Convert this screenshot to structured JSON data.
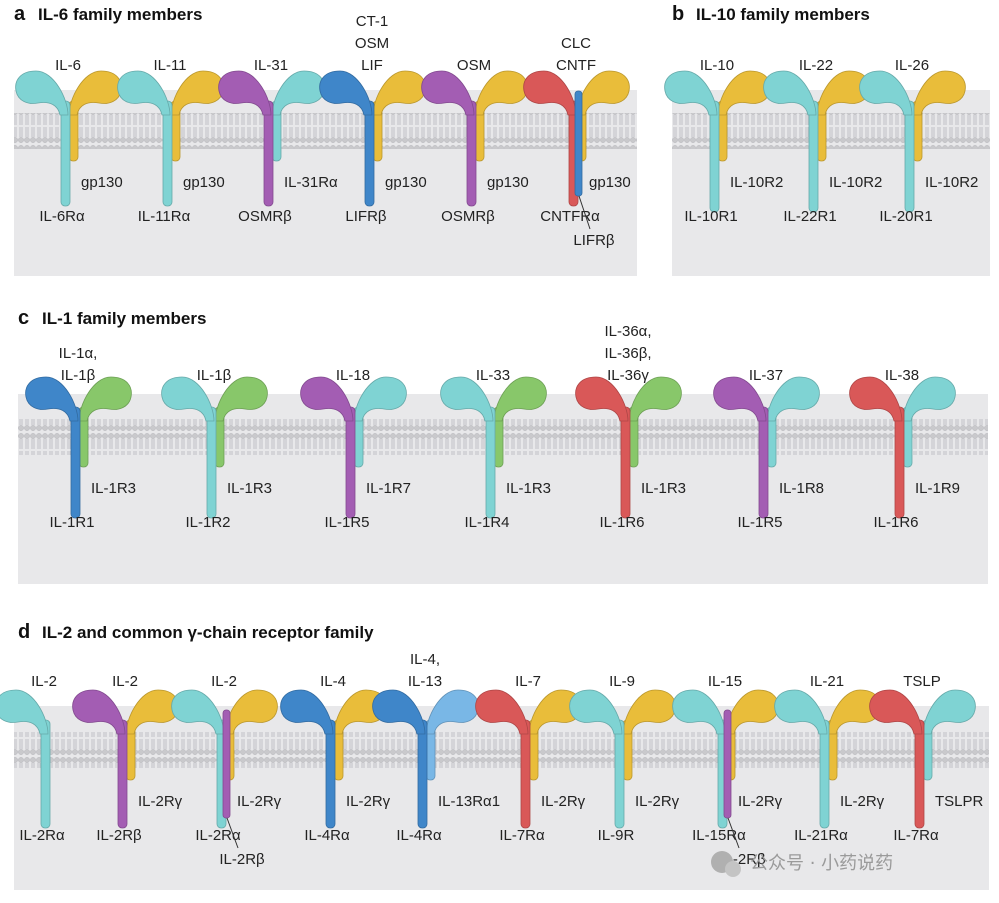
{
  "colors": {
    "cyan": "#7fd3d3",
    "cyan_dark": "#4fb3b5",
    "yellow": "#e9bd3a",
    "purple": "#a35db3",
    "blue": "#3f86c9",
    "lightblue": "#79b7e6",
    "red": "#d95858",
    "green": "#88c76a",
    "panel": "#e8e8ea"
  },
  "sections": [
    {
      "id": "a",
      "letter": "a",
      "title": "IL-6 family members",
      "receptors": [
        {
          "ligand": [
            "IL-6"
          ],
          "left": "cyan",
          "right": "yellow",
          "left_label": "IL-6Rα",
          "right_label": "gp130"
        },
        {
          "ligand": [
            "IL-11"
          ],
          "left": "cyan",
          "right": "yellow",
          "left_label": "IL-11Rα",
          "right_label": "gp130"
        },
        {
          "ligand": [
            "IL-31"
          ],
          "left": "purple",
          "right": "cyan",
          "left_label": "OSMRβ",
          "right_label": "IL-31Rα"
        },
        {
          "ligand": [
            "CT-1",
            "OSM",
            "LIF"
          ],
          "left": "blue",
          "right": "yellow",
          "left_label": "LIFRβ",
          "right_label": "gp130"
        },
        {
          "ligand": [
            "OSM"
          ],
          "left": "purple",
          "right": "yellow",
          "left_label": "OSMRβ",
          "right_label": "gp130"
        },
        {
          "ligand": [
            "CLC",
            "CNTF"
          ],
          "left": "red",
          "right": "yellow",
          "left_label": "CNTFRα",
          "right_label": "gp130",
          "middle": "blue",
          "middle_label": "LIFRβ"
        }
      ]
    },
    {
      "id": "b",
      "letter": "b",
      "title": "IL-10 family members",
      "receptors": [
        {
          "ligand": [
            "IL-10"
          ],
          "left": "cyan",
          "right": "yellow",
          "left_label": "IL-10R1",
          "right_label": "IL-10R2"
        },
        {
          "ligand": [
            "IL-22"
          ],
          "left": "cyan",
          "right": "yellow",
          "left_label": "IL-22R1",
          "right_label": "IL-10R2"
        },
        {
          "ligand": [
            "IL-26"
          ],
          "left": "cyan",
          "right": "yellow",
          "left_label": "IL-20R1",
          "right_label": "IL-10R2"
        }
      ]
    },
    {
      "id": "c",
      "letter": "c",
      "title": "IL-1 family members",
      "receptors": [
        {
          "ligand": [
            "IL-1α,",
            "IL-1β"
          ],
          "left": "blue",
          "right": "green",
          "left_label": "IL-1R1",
          "right_label": "IL-1R3"
        },
        {
          "ligand": [
            "IL-1β"
          ],
          "left": "cyan",
          "right": "green",
          "left_label": "IL-1R2",
          "right_label": "IL-1R3"
        },
        {
          "ligand": [
            "IL-18"
          ],
          "left": "purple",
          "right": "cyan",
          "left_label": "IL-1R5",
          "right_label": "IL-1R7"
        },
        {
          "ligand": [
            "IL-33"
          ],
          "left": "cyan",
          "right": "green",
          "left_label": "IL-1R4",
          "right_label": "IL-1R3"
        },
        {
          "ligand": [
            "IL-36α,",
            "IL-36β,",
            "IL-36γ"
          ],
          "left": "red",
          "right": "green",
          "left_label": "IL-1R6",
          "right_label": "IL-1R3"
        },
        {
          "ligand": [
            "IL-37"
          ],
          "left": "purple",
          "right": "cyan",
          "left_label": "IL-1R5",
          "right_label": "IL-1R8"
        },
        {
          "ligand": [
            "IL-38"
          ],
          "left": "red",
          "right": "cyan",
          "left_label": "IL-1R6",
          "right_label": "IL-1R9"
        }
      ]
    },
    {
      "id": "d",
      "letter": "d",
      "title": "IL-2 and common γ-chain receptor family",
      "receptors": [
        {
          "ligand": [
            "IL-2"
          ],
          "left": "cyan",
          "right": null,
          "left_label": "IL-2Rα",
          "right_label": ""
        },
        {
          "ligand": [
            "IL-2"
          ],
          "left": "purple",
          "right": "yellow",
          "left_label": "IL-2Rβ",
          "right_label": "IL-2Rγ"
        },
        {
          "ligand": [
            "IL-2"
          ],
          "left": "cyan",
          "right": "yellow",
          "left_label": "IL-2Rα",
          "right_label": "IL-2Rγ",
          "middle": "purple",
          "middle_label": "IL-2Rβ"
        },
        {
          "ligand": [
            "IL-4"
          ],
          "left": "blue",
          "right": "yellow",
          "left_label": "IL-4Rα",
          "right_label": "IL-2Rγ"
        },
        {
          "ligand": [
            "IL-4,",
            "IL-13"
          ],
          "left": "blue",
          "right": "lightblue",
          "left_label": "IL-4Rα",
          "right_label": "IL-13Rα1"
        },
        {
          "ligand": [
            "IL-7"
          ],
          "left": "red",
          "right": "yellow",
          "left_label": "IL-7Rα",
          "right_label": "IL-2Rγ"
        },
        {
          "ligand": [
            "IL-9"
          ],
          "left": "cyan",
          "right": "yellow",
          "left_label": "IL-9R",
          "right_label": "IL-2Rγ"
        },
        {
          "ligand": [
            "IL-15"
          ],
          "left": "cyan",
          "right": "yellow",
          "left_label": "IL-15Rα",
          "right_label": "IL-2Rγ",
          "middle": "purple",
          "middle_label": "IL-2Rβ"
        },
        {
          "ligand": [
            "IL-21"
          ],
          "left": "cyan",
          "right": "yellow",
          "left_label": "IL-21Rα",
          "right_label": "IL-2Rγ"
        },
        {
          "ligand": [
            "TSLP"
          ],
          "left": "red",
          "right": "cyan",
          "left_label": "IL-7Rα",
          "right_label": "TSLPR"
        }
      ]
    }
  ],
  "watermark": {
    "icon": "wechat-icon",
    "text": "公众号 · 小药说药"
  }
}
